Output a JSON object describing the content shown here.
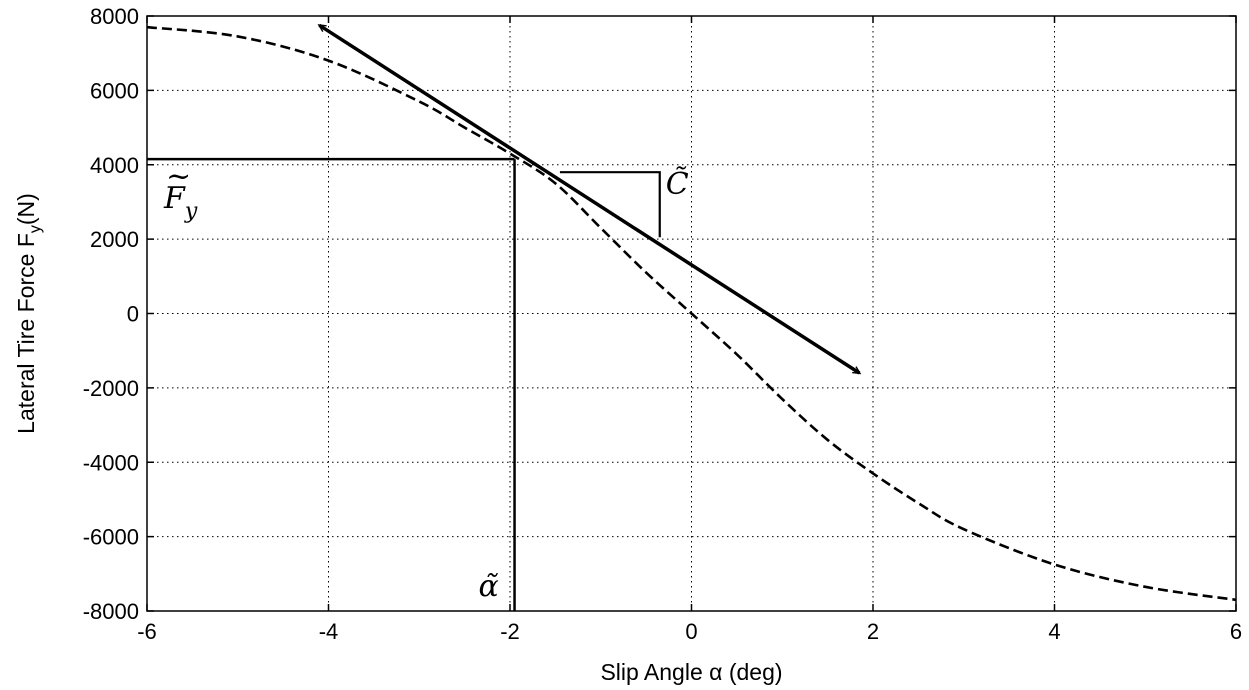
{
  "chart_data": {
    "type": "line",
    "title": "",
    "xlabel_main": "Slip Angle",
    "xlabel_sym": "α",
    "xlabel_unit": "(deg)",
    "ylabel_main": "Lateral Tire Force F",
    "ylabel_sub": "y",
    "ylabel_unit": "(N)",
    "xlim": [
      -6,
      6
    ],
    "ylim": [
      -8000,
      8000
    ],
    "xticks": [
      -6,
      -4,
      -2,
      0,
      2,
      4,
      6
    ],
    "yticks": [
      8000,
      6000,
      4000,
      2000,
      0,
      -2000,
      -4000,
      -6000,
      -8000
    ],
    "grid": true,
    "series": [
      {
        "style": "dashed",
        "x": [
          -6,
          -5,
          -4,
          -3,
          -2.5,
          -2,
          -1.5,
          -1,
          -0.5,
          0,
          0.5,
          1,
          1.5,
          2,
          2.5,
          3,
          4,
          5,
          6
        ],
        "y": [
          7700,
          7450,
          6800,
          5700,
          5000,
          4300,
          3500,
          2300,
          1100,
          0,
          -1100,
          -2300,
          -3400,
          -4300,
          -5100,
          -5800,
          -6750,
          -7350,
          -7700
        ]
      }
    ],
    "tangent_line": {
      "x": [
        -4.1,
        1.85
      ],
      "y": [
        7750,
        -1600
      ]
    },
    "operating_point": {
      "x": -1.95,
      "y": 4150
    },
    "slope_triangle": {
      "x": [
        -1.45,
        -0.35
      ],
      "y": [
        3800,
        2050
      ]
    },
    "annotations": {
      "alpha_tilde": "α̃",
      "fy_tilde_base": "F",
      "fy_tilde_sub": "y",
      "fy_tilde_accent": "~",
      "c_tilde": "C̃"
    }
  }
}
